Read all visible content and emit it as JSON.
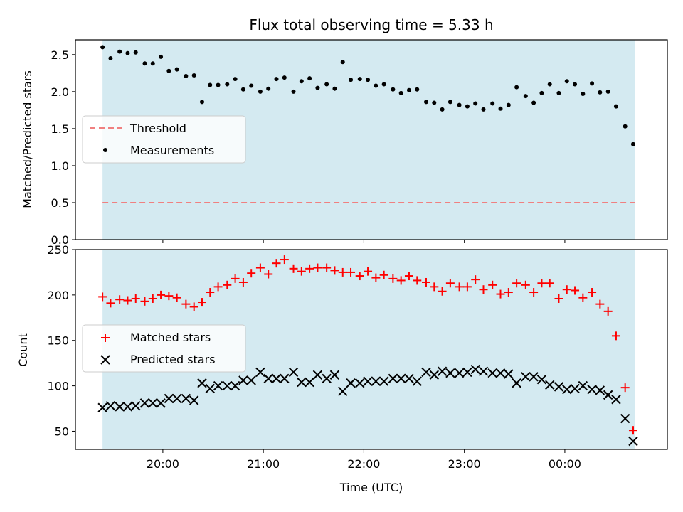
{
  "chart_data": {
    "title": "Flux total observing time = 5.33 h",
    "xlabel": "Time (UTC)",
    "x_ticks": [
      "20:00",
      "21:00",
      "22:00",
      "23:00",
      "00:00"
    ],
    "x_tick_hours": [
      20,
      21,
      22,
      23,
      24
    ],
    "xlim_hours": [
      19.13,
      25.02
    ],
    "observing_window_hours": [
      19.4,
      24.7
    ],
    "background_color": "#d4eaf1",
    "panels": [
      {
        "type": "scatter",
        "ylabel": "Matched/Predicted stars",
        "ylim": [
          0,
          2.7
        ],
        "y_ticks": [
          "0.0",
          "0.5",
          "1.0",
          "1.5",
          "2.0",
          "2.5"
        ],
        "y_tick_values": [
          0,
          0.5,
          1.0,
          1.5,
          2.0,
          2.5
        ],
        "legend": {
          "placement": "center-left",
          "entries": [
            "Threshold",
            "Measurements"
          ]
        },
        "threshold": {
          "name": "Threshold",
          "value": 0.5,
          "color": "#f08080"
        },
        "series": [
          {
            "name": "Measurements",
            "color": "#000000",
            "x_hours": [
              19.4,
              19.48,
              19.57,
              19.65,
              19.73,
              19.82,
              19.9,
              19.98,
              20.06,
              20.14,
              20.23,
              20.31,
              20.39,
              20.47,
              20.55,
              20.64,
              20.72,
              20.8,
              20.88,
              20.97,
              21.05,
              21.13,
              21.21,
              21.3,
              21.38,
              21.46,
              21.54,
              21.63,
              21.71,
              21.79,
              21.87,
              21.96,
              22.04,
              22.12,
              22.2,
              22.29,
              22.37,
              22.45,
              22.53,
              22.62,
              22.7,
              22.78,
              22.86,
              22.95,
              23.03,
              23.11,
              23.19,
              23.28,
              23.36,
              23.44,
              23.52,
              23.61,
              23.69,
              23.77,
              23.85,
              23.94,
              24.02,
              24.1,
              24.18,
              24.27,
              24.35,
              24.43,
              24.51,
              24.6,
              24.68
            ],
            "y": [
              2.6,
              2.45,
              2.54,
              2.52,
              2.53,
              2.38,
              2.38,
              2.47,
              2.28,
              2.3,
              2.21,
              2.22,
              1.86,
              2.09,
              2.09,
              2.1,
              2.17,
              2.03,
              2.08,
              2.0,
              2.04,
              2.17,
              2.19,
              2.0,
              2.14,
              2.18,
              2.05,
              2.1,
              2.04,
              2.4,
              2.16,
              2.17,
              2.16,
              2.08,
              2.1,
              2.03,
              1.98,
              2.02,
              2.03,
              1.86,
              1.85,
              1.76,
              1.86,
              1.82,
              1.8,
              1.84,
              1.76,
              1.84,
              1.77,
              1.82,
              2.06,
              1.94,
              1.85,
              1.98,
              2.1,
              1.98,
              2.14,
              2.1,
              1.97,
              2.11,
              1.99,
              2.0,
              1.8,
              1.53,
              1.29
            ]
          }
        ]
      },
      {
        "type": "scatter",
        "ylabel": "Count",
        "ylim": [
          30,
          250
        ],
        "y_ticks": [
          "50",
          "100",
          "150",
          "200",
          "250"
        ],
        "y_tick_values": [
          50,
          100,
          150,
          200,
          250
        ],
        "legend": {
          "placement": "center-left",
          "entries": [
            "Matched stars",
            "Predicted stars"
          ]
        },
        "series": [
          {
            "name": "Matched stars",
            "marker": "plus",
            "color": "#ff0000",
            "x_hours": [
              19.4,
              19.48,
              19.57,
              19.65,
              19.73,
              19.82,
              19.9,
              19.98,
              20.06,
              20.14,
              20.23,
              20.31,
              20.39,
              20.47,
              20.55,
              20.64,
              20.72,
              20.8,
              20.88,
              20.97,
              21.05,
              21.13,
              21.21,
              21.3,
              21.38,
              21.46,
              21.54,
              21.63,
              21.71,
              21.79,
              21.87,
              21.96,
              22.04,
              22.12,
              22.2,
              22.29,
              22.37,
              22.45,
              22.53,
              22.62,
              22.7,
              22.78,
              22.86,
              22.95,
              23.03,
              23.11,
              23.19,
              23.28,
              23.36,
              23.44,
              23.52,
              23.61,
              23.69,
              23.77,
              23.85,
              23.94,
              24.02,
              24.1,
              24.18,
              24.27,
              24.35,
              24.43,
              24.51,
              24.6,
              24.68
            ],
            "y": [
              198,
              191,
              195,
              194,
              196,
              193,
              196,
              200,
              199,
              197,
              190,
              187,
              192,
              203,
              209,
              211,
              218,
              214,
              224,
              230,
              223,
              235,
              239,
              229,
              226,
              229,
              230,
              230,
              227,
              225,
              225,
              221,
              226,
              219,
              222,
              218,
              216,
              221,
              216,
              214,
              209,
              204,
              213,
              209,
              209,
              217,
              206,
              211,
              201,
              203,
              213,
              211,
              203,
              213,
              213,
              196,
              206,
              205,
              197,
              203,
              190,
              182,
              155,
              98,
              51
            ]
          },
          {
            "name": "Predicted stars",
            "marker": "cross",
            "color": "#000000",
            "x_hours": [
              19.4,
              19.48,
              19.57,
              19.65,
              19.73,
              19.82,
              19.9,
              19.98,
              20.06,
              20.14,
              20.23,
              20.31,
              20.39,
              20.47,
              20.55,
              20.64,
              20.72,
              20.8,
              20.88,
              20.97,
              21.05,
              21.13,
              21.21,
              21.3,
              21.38,
              21.46,
              21.54,
              21.63,
              21.71,
              21.79,
              21.87,
              21.96,
              22.04,
              22.12,
              22.2,
              22.29,
              22.37,
              22.45,
              22.53,
              22.62,
              22.7,
              22.78,
              22.86,
              22.95,
              23.03,
              23.11,
              23.19,
              23.28,
              23.36,
              23.44,
              23.52,
              23.61,
              23.69,
              23.77,
              23.85,
              23.94,
              24.02,
              24.1,
              24.18,
              24.27,
              24.35,
              24.43,
              24.51,
              24.6,
              24.68
            ],
            "y": [
              76,
              78,
              77,
              77,
              78,
              81,
              81,
              81,
              86,
              86,
              86,
              84,
              103,
              97,
              100,
              100,
              100,
              106,
              106,
              115,
              108,
              108,
              108,
              115,
              104,
              104,
              112,
              108,
              112,
              94,
              103,
              103,
              105,
              105,
              105,
              108,
              108,
              108,
              105,
              115,
              112,
              116,
              114,
              114,
              115,
              118,
              116,
              114,
              114,
              113,
              103,
              110,
              110,
              107,
              101,
              99,
              96,
              97,
              100,
              96,
              95,
              90,
              85,
              64,
              39
            ]
          }
        ]
      }
    ]
  }
}
